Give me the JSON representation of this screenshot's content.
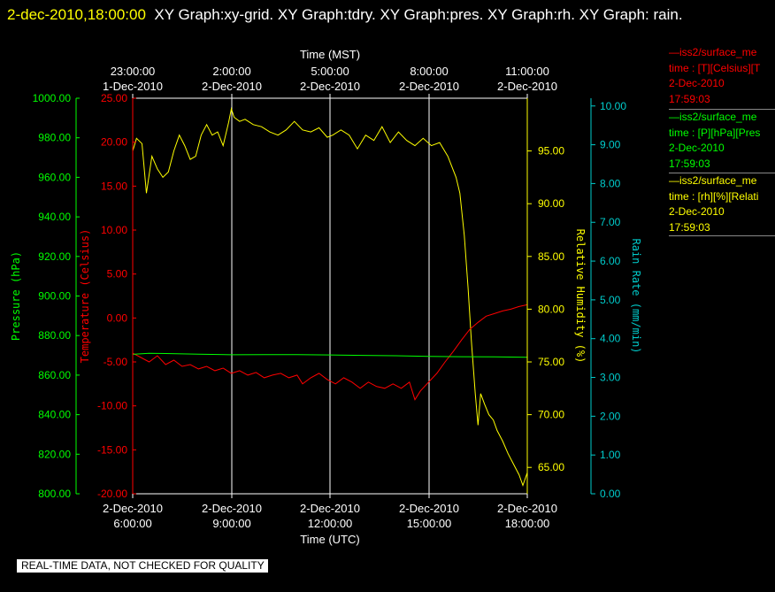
{
  "header": {
    "timestamp": "2-dec-2010,18:00:00",
    "graphs": "XY Graph:xy-grid.  XY Graph:tdry.  XY Graph:pres.  XY Graph:rh.  XY Graph:",
    "graphs_cont": "rain."
  },
  "colors": {
    "temperature": "#ff0000",
    "pressure": "#00ff00",
    "humidity": "#ffff00",
    "rain": "#00cccc",
    "grid": "#ffffff",
    "background": "#000000"
  },
  "legend": [
    {
      "line1": "—iss2/surface_me",
      "line2": "time : [T][Celsius][T",
      "line3": "2-Dec-2010",
      "line4": "17:59:03",
      "color": "#ff0000"
    },
    {
      "line1": "—iss2/surface_me",
      "line2": "time : [P][hPa][Pres",
      "line3": "2-Dec-2010",
      "line4": "17:59:03",
      "color": "#00ff00"
    },
    {
      "line1": "—iss2/surface_me",
      "line2": "time : [rh][%][Relati",
      "line3": "2-Dec-2010",
      "line4": "17:59:03",
      "color": "#ffff00"
    }
  ],
  "qc_note": "REAL-TIME DATA, NOT CHECKED FOR QUALITY",
  "chart_data": {
    "type": "line",
    "top_axis": {
      "label": "Time (MST)",
      "ticks": [
        {
          "time": "23:00:00",
          "date": "1-Dec-2010"
        },
        {
          "time": "2:00:00",
          "date": "2-Dec-2010"
        },
        {
          "time": "5:00:00",
          "date": "2-Dec-2010"
        },
        {
          "time": "8:00:00",
          "date": "2-Dec-2010"
        },
        {
          "time": "11:00:00",
          "date": "2-Dec-2010"
        }
      ]
    },
    "bottom_axis": {
      "label": "Time (UTC)",
      "xlim": [
        "2010-12-02T06:00:00Z",
        "2010-12-02T18:00:00Z"
      ],
      "ticks": [
        {
          "time": "6:00:00",
          "date": "2-Dec-2010"
        },
        {
          "time": "9:00:00",
          "date": "2-Dec-2010"
        },
        {
          "time": "12:00:00",
          "date": "2-Dec-2010"
        },
        {
          "time": "15:00:00",
          "date": "2-Dec-2010"
        },
        {
          "time": "18:00:00",
          "date": "2-Dec-2010"
        }
      ]
    },
    "grid": "vertical",
    "y_axes": {
      "pressure": {
        "label": "Pressure (hPa)",
        "ylim": [
          800,
          1000
        ],
        "ticks": [
          "800.00",
          "820.00",
          "840.00",
          "860.00",
          "880.00",
          "900.00",
          "920.00",
          "940.00",
          "960.00",
          "980.00",
          "1000.00"
        ]
      },
      "temperature": {
        "label": "Temperature (Celsius)",
        "ylim": [
          -20,
          25
        ],
        "ticks": [
          "-20.00",
          "-15.00",
          "-10.00",
          "-5.00",
          "0.00",
          "5.00",
          "10.00",
          "15.00",
          "20.00",
          "25.00"
        ]
      },
      "humidity": {
        "label": "Relative Humidity (%)",
        "ylim": [
          62.5,
          100
        ],
        "ticks": [
          "65.00",
          "70.00",
          "75.00",
          "80.00",
          "85.00",
          "90.00",
          "95.00"
        ]
      },
      "rain": {
        "label": "Rain Rate (mm/min)",
        "ylim": [
          0,
          10.2
        ],
        "ticks": [
          "0.00",
          "1.00",
          "2.00",
          "3.00",
          "4.00",
          "5.00",
          "6.00",
          "7.00",
          "8.00",
          "9.00",
          "10.00"
        ]
      }
    },
    "series": [
      {
        "axis": "humidity",
        "color": "#ffff00",
        "points": [
          [
            "2010-12-02T06:00:00Z",
            95.0
          ],
          [
            "2010-12-02T06:07:00Z",
            96.2
          ],
          [
            "2010-12-02T06:17:00Z",
            95.7
          ],
          [
            "2010-12-02T06:25:00Z",
            91.0
          ],
          [
            "2010-12-02T06:35:00Z",
            94.5
          ],
          [
            "2010-12-02T06:45:00Z",
            93.3
          ],
          [
            "2010-12-02T06:55:00Z",
            92.5
          ],
          [
            "2010-12-02T07:05:00Z",
            93.0
          ],
          [
            "2010-12-02T07:15:00Z",
            95.0
          ],
          [
            "2010-12-02T07:25:00Z",
            96.5
          ],
          [
            "2010-12-02T07:35:00Z",
            95.5
          ],
          [
            "2010-12-02T07:45:00Z",
            94.2
          ],
          [
            "2010-12-02T07:55:00Z",
            94.5
          ],
          [
            "2010-12-02T08:05:00Z",
            96.5
          ],
          [
            "2010-12-02T08:15:00Z",
            97.5
          ],
          [
            "2010-12-02T08:25:00Z",
            96.5
          ],
          [
            "2010-12-02T08:35:00Z",
            96.8
          ],
          [
            "2010-12-02T08:45:00Z",
            95.5
          ],
          [
            "2010-12-02T08:55:00Z",
            97.7
          ],
          [
            "2010-12-02T09:00:00Z",
            99.0
          ],
          [
            "2010-12-02T09:05:00Z",
            98.2
          ],
          [
            "2010-12-02T09:15:00Z",
            97.8
          ],
          [
            "2010-12-02T09:25:00Z",
            98.0
          ],
          [
            "2010-12-02T09:40:00Z",
            97.5
          ],
          [
            "2010-12-02T09:55:00Z",
            97.3
          ],
          [
            "2010-12-02T10:10:00Z",
            96.8
          ],
          [
            "2010-12-02T10:25:00Z",
            96.5
          ],
          [
            "2010-12-02T10:40:00Z",
            97.0
          ],
          [
            "2010-12-02T10:55:00Z",
            97.8
          ],
          [
            "2010-12-02T11:10:00Z",
            97.0
          ],
          [
            "2010-12-02T11:25:00Z",
            96.8
          ],
          [
            "2010-12-02T11:40:00Z",
            97.2
          ],
          [
            "2010-12-02T11:55:00Z",
            96.3
          ],
          [
            "2010-12-02T12:05:00Z",
            96.5
          ],
          [
            "2010-12-02T12:20:00Z",
            97.0
          ],
          [
            "2010-12-02T12:35:00Z",
            96.5
          ],
          [
            "2010-12-02T12:50:00Z",
            95.2
          ],
          [
            "2010-12-02T13:05:00Z",
            96.5
          ],
          [
            "2010-12-02T13:20:00Z",
            96.0
          ],
          [
            "2010-12-02T13:35:00Z",
            97.3
          ],
          [
            "2010-12-02T13:50:00Z",
            95.8
          ],
          [
            "2010-12-02T14:05:00Z",
            96.8
          ],
          [
            "2010-12-02T14:20:00Z",
            96.0
          ],
          [
            "2010-12-02T14:35:00Z",
            95.5
          ],
          [
            "2010-12-02T14:50:00Z",
            96.2
          ],
          [
            "2010-12-02T15:05:00Z",
            95.5
          ],
          [
            "2010-12-02T15:20:00Z",
            95.8
          ],
          [
            "2010-12-02T15:35:00Z",
            94.5
          ],
          [
            "2010-12-02T15:50:00Z",
            92.5
          ],
          [
            "2010-12-02T15:57:00Z",
            91.0
          ],
          [
            "2010-12-02T16:05:00Z",
            87.0
          ],
          [
            "2010-12-02T16:12:00Z",
            82.0
          ],
          [
            "2010-12-02T16:18:00Z",
            77.0
          ],
          [
            "2010-12-02T16:25:00Z",
            72.0
          ],
          [
            "2010-12-02T16:30:00Z",
            69.0
          ],
          [
            "2010-12-02T16:35:00Z",
            72.0
          ],
          [
            "2010-12-02T16:42:00Z",
            71.0
          ],
          [
            "2010-12-02T16:50:00Z",
            70.0
          ],
          [
            "2010-12-02T16:58:00Z",
            69.5
          ],
          [
            "2010-12-02T17:05:00Z",
            68.5
          ],
          [
            "2010-12-02T17:15:00Z",
            67.5
          ],
          [
            "2010-12-02T17:25:00Z",
            66.3
          ],
          [
            "2010-12-02T17:35:00Z",
            65.3
          ],
          [
            "2010-12-02T17:45:00Z",
            64.3
          ],
          [
            "2010-12-02T17:52:00Z",
            63.3
          ],
          [
            "2010-12-02T18:00:00Z",
            64.5
          ]
        ]
      },
      {
        "axis": "temperature",
        "color": "#ff0000",
        "points": [
          [
            "2010-12-02T06:00:00Z",
            -4.0
          ],
          [
            "2010-12-02T06:15:00Z",
            -4.5
          ],
          [
            "2010-12-02T06:30:00Z",
            -5.0
          ],
          [
            "2010-12-02T06:45:00Z",
            -4.3
          ],
          [
            "2010-12-02T07:00:00Z",
            -5.3
          ],
          [
            "2010-12-02T07:15:00Z",
            -4.8
          ],
          [
            "2010-12-02T07:30:00Z",
            -5.5
          ],
          [
            "2010-12-02T07:45:00Z",
            -5.3
          ],
          [
            "2010-12-02T08:00:00Z",
            -5.8
          ],
          [
            "2010-12-02T08:15:00Z",
            -5.5
          ],
          [
            "2010-12-02T08:30:00Z",
            -6.0
          ],
          [
            "2010-12-02T08:45:00Z",
            -5.7
          ],
          [
            "2010-12-02T09:00:00Z",
            -6.3
          ],
          [
            "2010-12-02T09:15:00Z",
            -6.0
          ],
          [
            "2010-12-02T09:30:00Z",
            -6.5
          ],
          [
            "2010-12-02T09:45:00Z",
            -6.2
          ],
          [
            "2010-12-02T10:00:00Z",
            -6.8
          ],
          [
            "2010-12-02T10:15:00Z",
            -6.5
          ],
          [
            "2010-12-02T10:30:00Z",
            -6.3
          ],
          [
            "2010-12-02T10:45:00Z",
            -6.8
          ],
          [
            "2010-12-02T11:00:00Z",
            -6.5
          ],
          [
            "2010-12-02T11:10:00Z",
            -7.5
          ],
          [
            "2010-12-02T11:25:00Z",
            -6.8
          ],
          [
            "2010-12-02T11:40:00Z",
            -6.3
          ],
          [
            "2010-12-02T11:55:00Z",
            -7.0
          ],
          [
            "2010-12-02T12:10:00Z",
            -7.5
          ],
          [
            "2010-12-02T12:25:00Z",
            -6.8
          ],
          [
            "2010-12-02T12:40:00Z",
            -7.3
          ],
          [
            "2010-12-02T12:55:00Z",
            -8.0
          ],
          [
            "2010-12-02T13:10:00Z",
            -7.3
          ],
          [
            "2010-12-02T13:25:00Z",
            -7.8
          ],
          [
            "2010-12-02T13:40:00Z",
            -8.0
          ],
          [
            "2010-12-02T13:55:00Z",
            -7.5
          ],
          [
            "2010-12-02T14:10:00Z",
            -8.0
          ],
          [
            "2010-12-02T14:25:00Z",
            -7.3
          ],
          [
            "2010-12-02T14:35:00Z",
            -9.3
          ],
          [
            "2010-12-02T14:45:00Z",
            -8.3
          ],
          [
            "2010-12-02T15:00:00Z",
            -7.3
          ],
          [
            "2010-12-02T15:15:00Z",
            -6.3
          ],
          [
            "2010-12-02T15:30:00Z",
            -5.0
          ],
          [
            "2010-12-02T15:45:00Z",
            -3.8
          ],
          [
            "2010-12-02T16:00:00Z",
            -2.5
          ],
          [
            "2010-12-02T16:15:00Z",
            -1.3
          ],
          [
            "2010-12-02T16:30:00Z",
            -0.5
          ],
          [
            "2010-12-02T16:45:00Z",
            0.2
          ],
          [
            "2010-12-02T17:00:00Z",
            0.5
          ],
          [
            "2010-12-02T17:15:00Z",
            0.8
          ],
          [
            "2010-12-02T17:30:00Z",
            1.0
          ],
          [
            "2010-12-02T17:45:00Z",
            1.3
          ],
          [
            "2010-12-02T18:00:00Z",
            1.5
          ]
        ]
      },
      {
        "axis": "pressure",
        "color": "#00ff00",
        "points": [
          [
            "2010-12-02T06:00:00Z",
            870.5
          ],
          [
            "2010-12-02T06:30:00Z",
            871.0
          ],
          [
            "2010-12-02T07:00:00Z",
            870.9
          ],
          [
            "2010-12-02T08:00:00Z",
            870.6
          ],
          [
            "2010-12-02T09:00:00Z",
            870.3
          ],
          [
            "2010-12-02T10:00:00Z",
            870.4
          ],
          [
            "2010-12-02T11:00:00Z",
            870.4
          ],
          [
            "2010-12-02T12:00:00Z",
            870.2
          ],
          [
            "2010-12-02T13:00:00Z",
            870.0
          ],
          [
            "2010-12-02T14:00:00Z",
            869.8
          ],
          [
            "2010-12-02T15:00:00Z",
            869.5
          ],
          [
            "2010-12-02T16:00:00Z",
            869.3
          ],
          [
            "2010-12-02T17:00:00Z",
            869.2
          ],
          [
            "2010-12-02T18:00:00Z",
            869.0
          ]
        ]
      }
    ]
  }
}
